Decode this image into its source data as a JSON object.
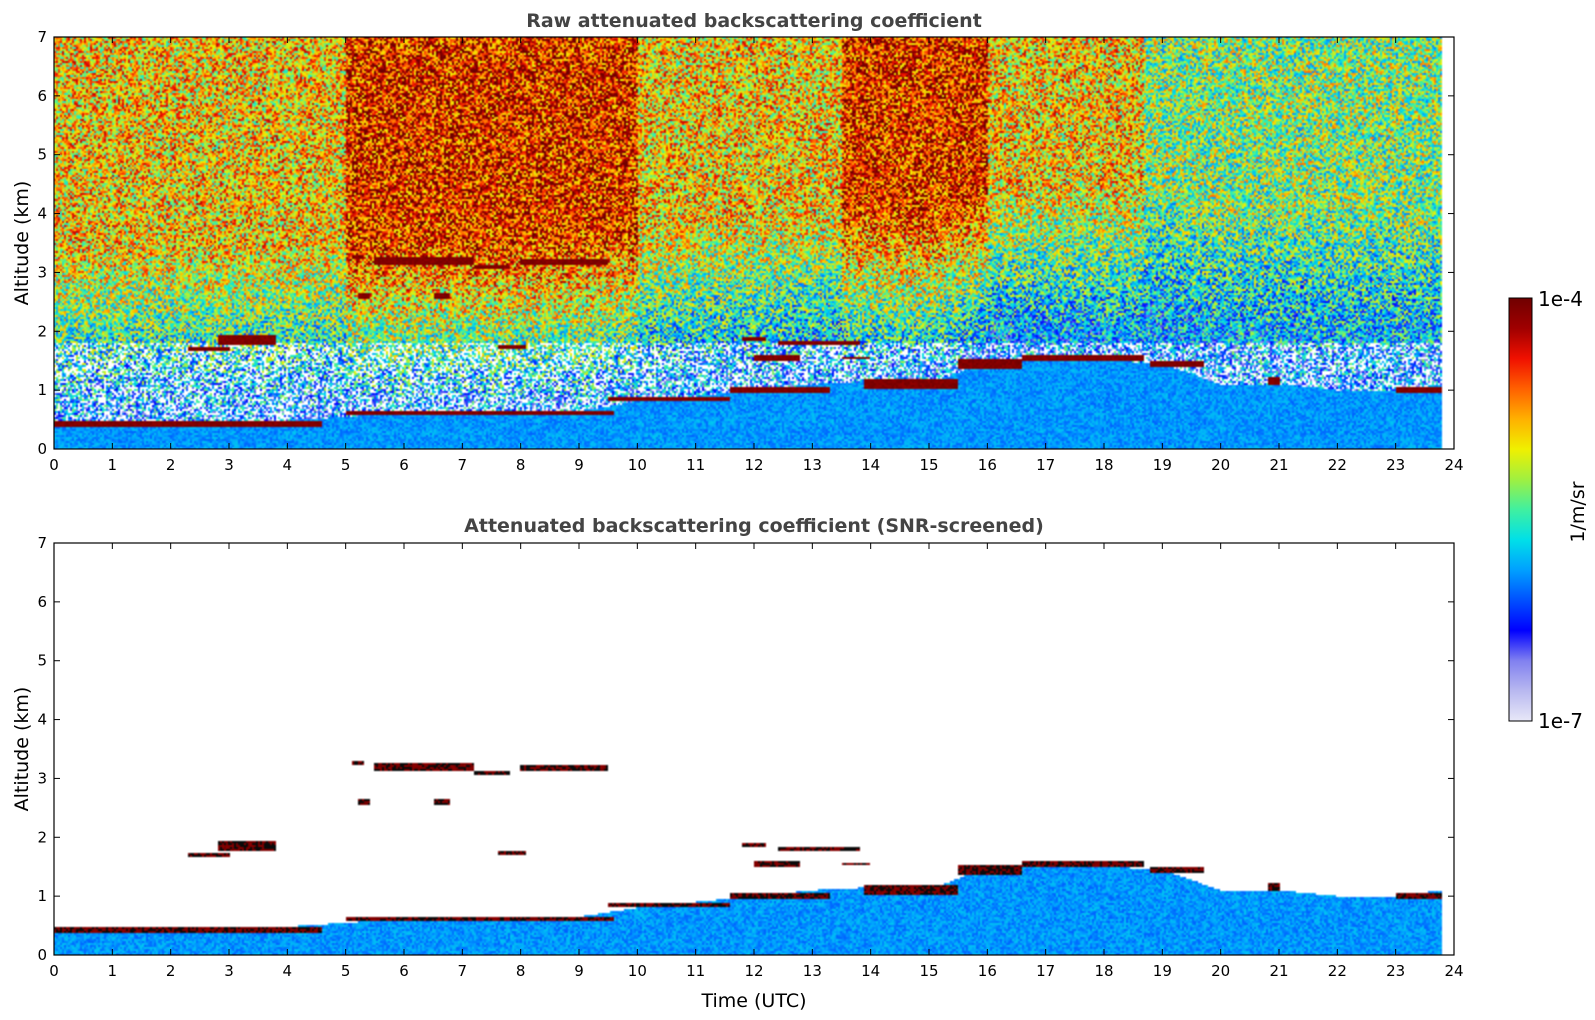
{
  "chart_data": [
    {
      "type": "heatmap",
      "title": "Raw attenuated backscattering coefficient",
      "xlabel": "",
      "ylabel": "Altitude (km)",
      "xlim": [
        0,
        24
      ],
      "ylim": [
        0,
        7
      ],
      "xticks": [
        "0",
        "1",
        "2",
        "3",
        "4",
        "5",
        "6",
        "7",
        "8",
        "9",
        "10",
        "11",
        "12",
        "13",
        "14",
        "15",
        "16",
        "17",
        "18",
        "19",
        "20",
        "21",
        "22",
        "23",
        "24"
      ],
      "yticks": [
        "0",
        "1",
        "2",
        "3",
        "4",
        "5",
        "6",
        "7"
      ],
      "data_end_time": 23.8,
      "boundary_layer": [
        [
          0,
          0.4
        ],
        [
          1,
          0.42
        ],
        [
          2,
          0.44
        ],
        [
          3,
          0.44
        ],
        [
          4,
          0.48
        ],
        [
          4.6,
          0.52
        ],
        [
          5,
          0.55
        ],
        [
          6,
          0.6
        ],
        [
          7,
          0.6
        ],
        [
          8,
          0.6
        ],
        [
          9,
          0.65
        ],
        [
          10,
          0.8
        ],
        [
          11,
          0.9
        ],
        [
          12,
          1.0
        ],
        [
          13,
          1.1
        ],
        [
          14,
          1.15
        ],
        [
          15,
          1.1
        ],
        [
          16,
          1.5
        ],
        [
          17,
          1.55
        ],
        [
          18,
          1.5
        ],
        [
          19,
          1.45
        ],
        [
          20,
          1.1
        ],
        [
          21,
          1.1
        ],
        [
          22,
          1.0
        ],
        [
          23,
          1.0
        ],
        [
          23.8,
          1.1
        ]
      ],
      "cloud_layers": [
        {
          "t0": 0.0,
          "t1": 4.6,
          "alt": 0.42,
          "thick": 0.12
        },
        {
          "t0": 5.0,
          "t1": 9.6,
          "alt": 0.62,
          "thick": 0.08
        },
        {
          "t0": 9.5,
          "t1": 11.6,
          "alt": 0.85,
          "thick": 0.1
        },
        {
          "t0": 11.6,
          "t1": 13.3,
          "alt": 1.0,
          "thick": 0.12
        },
        {
          "t0": 13.9,
          "t1": 15.5,
          "alt": 1.1,
          "thick": 0.15
        },
        {
          "t0": 15.5,
          "t1": 16.6,
          "alt": 1.45,
          "thick": 0.15
        },
        {
          "t0": 16.6,
          "t1": 18.7,
          "alt": 1.55,
          "thick": 0.12
        },
        {
          "t0": 18.8,
          "t1": 19.7,
          "alt": 1.45,
          "thick": 0.08
        },
        {
          "t0": 20.8,
          "t1": 21.0,
          "alt": 1.15,
          "thick": 0.15
        },
        {
          "t0": 23.0,
          "t1": 23.8,
          "alt": 1.0,
          "thick": 0.12
        },
        {
          "t0": 2.3,
          "t1": 3.0,
          "alt": 1.7,
          "thick": 0.06
        },
        {
          "t0": 2.8,
          "t1": 3.8,
          "alt": 1.85,
          "thick": 0.2
        },
        {
          "t0": 5.1,
          "t1": 5.3,
          "alt": 3.25,
          "thick": 0.06
        },
        {
          "t0": 5.5,
          "t1": 7.2,
          "alt": 3.2,
          "thick": 0.12
        },
        {
          "t0": 7.2,
          "t1": 7.8,
          "alt": 3.1,
          "thick": 0.06
        },
        {
          "t0": 8.0,
          "t1": 9.5,
          "alt": 3.17,
          "thick": 0.1
        },
        {
          "t0": 5.2,
          "t1": 5.4,
          "alt": 2.6,
          "thick": 0.1
        },
        {
          "t0": 6.5,
          "t1": 6.8,
          "alt": 2.6,
          "thick": 0.12
        },
        {
          "t0": 7.6,
          "t1": 8.1,
          "alt": 1.73,
          "thick": 0.07
        },
        {
          "t0": 11.8,
          "t1": 12.2,
          "alt": 1.87,
          "thick": 0.05
        },
        {
          "t0": 12.4,
          "t1": 13.8,
          "alt": 1.8,
          "thick": 0.1
        },
        {
          "t0": 12.0,
          "t1": 12.8,
          "alt": 1.55,
          "thick": 0.08
        },
        {
          "t0": 13.5,
          "t1": 14.0,
          "alt": 1.55,
          "thick": 0.06
        }
      ]
    },
    {
      "type": "heatmap",
      "title": "Attenuated backscattering coefficient (SNR-screened)",
      "xlabel": "Time (UTC)",
      "ylabel": "Altitude (km)",
      "xlim": [
        0,
        24
      ],
      "ylim": [
        0,
        7
      ],
      "xticks": [
        "0",
        "1",
        "2",
        "3",
        "4",
        "5",
        "6",
        "7",
        "8",
        "9",
        "10",
        "11",
        "12",
        "13",
        "14",
        "15",
        "16",
        "17",
        "18",
        "19",
        "20",
        "21",
        "22",
        "23",
        "24"
      ],
      "yticks": [
        "0",
        "1",
        "2",
        "3",
        "4",
        "5",
        "6",
        "7"
      ],
      "data_end_time": 23.8
    }
  ],
  "colorbar": {
    "label": "1/m/sr",
    "min_label": "1e-7",
    "max_label": "1e-4",
    "scale": "log",
    "colormap": [
      "#e8e8f8",
      "#b8b8f0",
      "#8080f0",
      "#0000ff",
      "#0050ff",
      "#00a0ff",
      "#00e0e8",
      "#40f0a0",
      "#a0f040",
      "#f0f000",
      "#ffb000",
      "#ff6000",
      "#f01000",
      "#a00000",
      "#700000"
    ]
  }
}
